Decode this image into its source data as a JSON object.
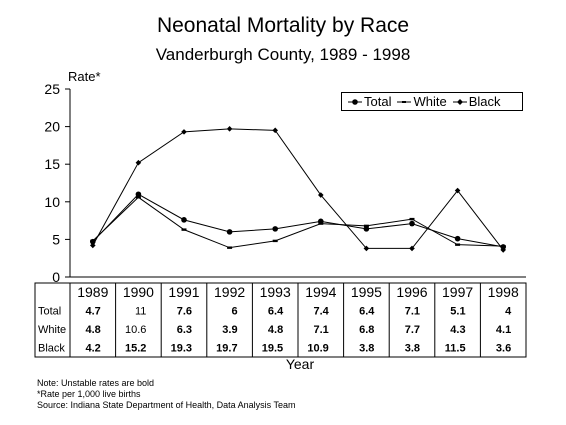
{
  "chart_data": {
    "type": "line",
    "title": "Neonatal Mortality by Race",
    "subtitle": "Vanderburgh County, 1989 - 1998",
    "ylabel": "Rate*",
    "xlabel": "Year",
    "ylim": [
      0,
      25
    ],
    "yticks": [
      "0",
      "5",
      "10",
      "15",
      "20",
      "25"
    ],
    "grid": false,
    "legend_position": "top-right",
    "categories": [
      "1989",
      "1990",
      "1991",
      "1992",
      "1993",
      "1994",
      "1995",
      "1996",
      "1997",
      "1998"
    ],
    "series": [
      {
        "name": "Total",
        "values": [
          4.7,
          11,
          7.6,
          6,
          6.4,
          7.4,
          6.4,
          7.1,
          5.1,
          4
        ],
        "labels": [
          "4.7",
          "11",
          "7.6",
          "6",
          "6.4",
          "7.4",
          "6.4",
          "7.1",
          "5.1",
          "4"
        ],
        "bold": [
          true,
          false,
          true,
          true,
          true,
          true,
          true,
          true,
          true,
          true
        ]
      },
      {
        "name": "White",
        "values": [
          4.8,
          10.6,
          6.3,
          3.9,
          4.8,
          7.1,
          6.8,
          7.7,
          4.3,
          4.1
        ],
        "labels": [
          "4.8",
          "10.6",
          "6.3",
          "3.9",
          "4.8",
          "7.1",
          "6.8",
          "7.7",
          "4.3",
          "4.1"
        ],
        "bold": [
          true,
          false,
          true,
          true,
          true,
          true,
          true,
          true,
          true,
          true
        ]
      },
      {
        "name": "Black",
        "values": [
          4.2,
          15.2,
          19.3,
          19.7,
          19.5,
          10.9,
          3.8,
          3.8,
          11.5,
          3.6
        ],
        "labels": [
          "4.2",
          "15.2",
          "19.3",
          "19.7",
          "19.5",
          "10.9",
          "3.8",
          "3.8",
          "11.5",
          "3.6"
        ],
        "bold": [
          true,
          true,
          true,
          true,
          true,
          true,
          true,
          true,
          true,
          true
        ]
      }
    ]
  },
  "notes": [
    "Note:  Unstable rates are bold",
    "*Rate per 1,000 live births",
    "Source:  Indiana State Department of Health, Data Analysis Team"
  ]
}
